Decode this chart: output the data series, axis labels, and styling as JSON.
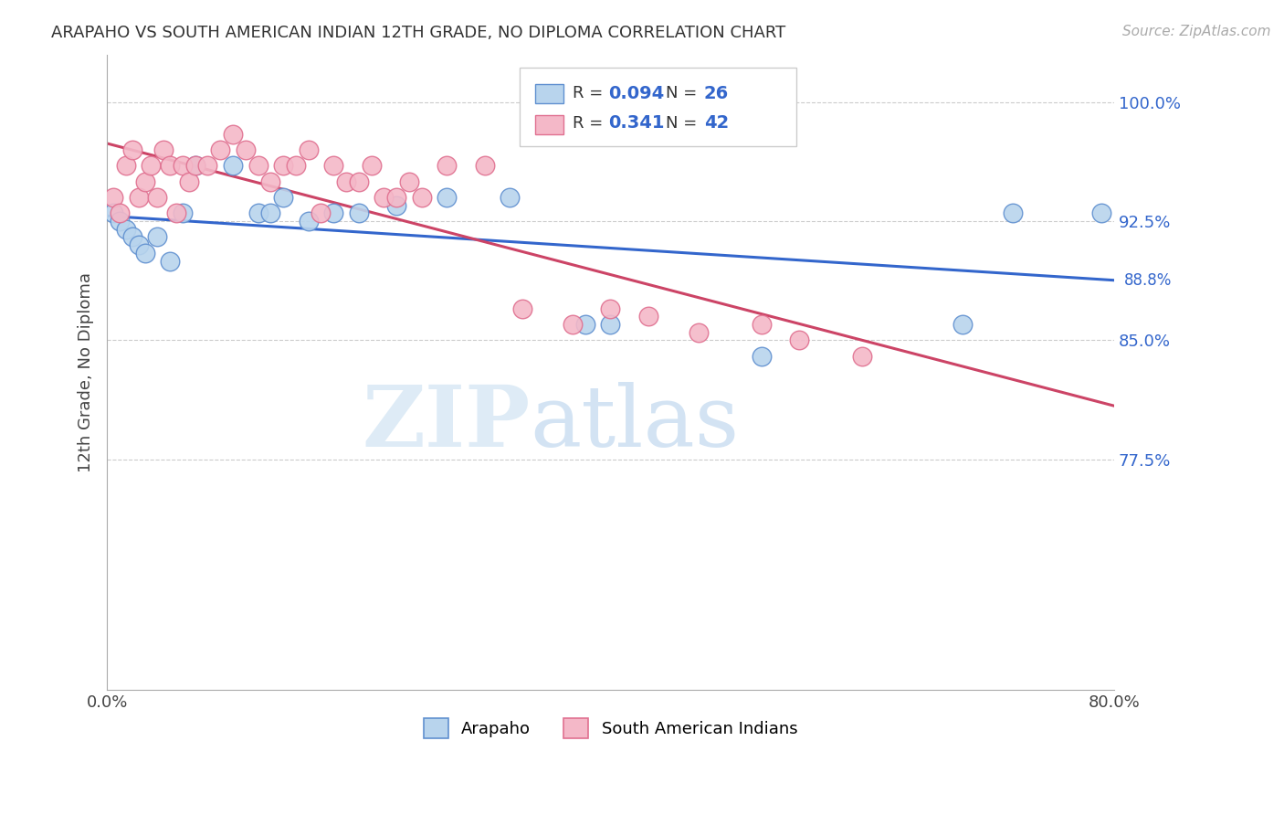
{
  "title": "ARAPAHO VS SOUTH AMERICAN INDIAN 12TH GRADE, NO DIPLOMA CORRELATION CHART",
  "source": "Source: ZipAtlas.com",
  "ylabel": "12th Grade, No Diploma",
  "xmin": 0.0,
  "xmax": 0.8,
  "ymin": 0.63,
  "ymax": 1.03,
  "yticks": [
    0.775,
    0.85,
    0.925,
    1.0
  ],
  "ytick_labels": [
    "77.5%",
    "85.0%",
    "92.5%",
    "100.0%"
  ],
  "xticks": [
    0.0,
    0.1,
    0.2,
    0.3,
    0.4,
    0.5,
    0.6,
    0.7,
    0.8
  ],
  "xtick_labels": [
    "0.0%",
    "",
    "",
    "",
    "",
    "",
    "",
    "",
    "80.0%"
  ],
  "blue_fill_color": "#b8d4ed",
  "pink_fill_color": "#f4b8c8",
  "blue_edge_color": "#6090d0",
  "pink_edge_color": "#e07090",
  "blue_line_color": "#3366cc",
  "pink_line_color": "#cc4466",
  "label_color": "#3366cc",
  "legend_R_blue": "0.094",
  "legend_N_blue": "26",
  "legend_R_pink": "0.341",
  "legend_N_pink": "42",
  "legend_label_blue": "Arapaho",
  "legend_label_pink": "South American Indians",
  "watermark_zip": "ZIP",
  "watermark_atlas": "atlas",
  "background_color": "#ffffff",
  "grid_color": "#cccccc",
  "blue_scatter_x": [
    0.005,
    0.01,
    0.015,
    0.02,
    0.025,
    0.03,
    0.04,
    0.05,
    0.06,
    0.07,
    0.1,
    0.12,
    0.13,
    0.14,
    0.16,
    0.18,
    0.2,
    0.23,
    0.27,
    0.32,
    0.38,
    0.4,
    0.52,
    0.68,
    0.72,
    0.79
  ],
  "blue_scatter_y": [
    0.93,
    0.925,
    0.92,
    0.915,
    0.91,
    0.905,
    0.915,
    0.9,
    0.93,
    0.96,
    0.96,
    0.93,
    0.93,
    0.94,
    0.925,
    0.93,
    0.93,
    0.935,
    0.94,
    0.94,
    0.86,
    0.86,
    0.84,
    0.86,
    0.93,
    0.93
  ],
  "pink_scatter_x": [
    0.005,
    0.01,
    0.015,
    0.02,
    0.025,
    0.03,
    0.035,
    0.04,
    0.045,
    0.05,
    0.055,
    0.06,
    0.065,
    0.07,
    0.08,
    0.09,
    0.1,
    0.11,
    0.12,
    0.13,
    0.14,
    0.15,
    0.16,
    0.17,
    0.18,
    0.19,
    0.2,
    0.21,
    0.22,
    0.23,
    0.24,
    0.25,
    0.27,
    0.3,
    0.33,
    0.37,
    0.4,
    0.43,
    0.47,
    0.52,
    0.55,
    0.6
  ],
  "pink_scatter_y": [
    0.94,
    0.93,
    0.96,
    0.97,
    0.94,
    0.95,
    0.96,
    0.94,
    0.97,
    0.96,
    0.93,
    0.96,
    0.95,
    0.96,
    0.96,
    0.97,
    0.98,
    0.97,
    0.96,
    0.95,
    0.96,
    0.96,
    0.97,
    0.93,
    0.96,
    0.95,
    0.95,
    0.96,
    0.94,
    0.94,
    0.95,
    0.94,
    0.96,
    0.96,
    0.87,
    0.86,
    0.87,
    0.865,
    0.855,
    0.86,
    0.85,
    0.84
  ]
}
